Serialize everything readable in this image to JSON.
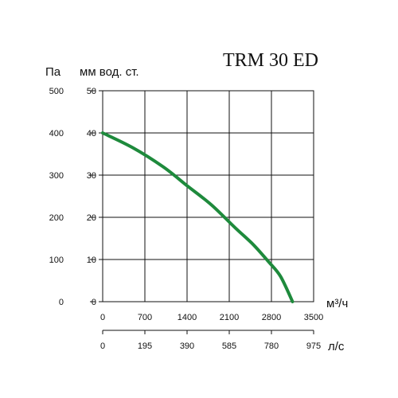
{
  "chart_data": {
    "type": "line",
    "title": "TRM 30 ED",
    "left_units": {
      "pa": "Па",
      "mm": "мм вод. ст."
    },
    "y_pa_ticks": [
      "500",
      "400",
      "300",
      "200",
      "100",
      "0"
    ],
    "y_mm_ticks": [
      "50",
      "40",
      "30",
      "20",
      "10",
      "0"
    ],
    "x_m3h_ticks": [
      "0",
      "700",
      "1400",
      "2100",
      "2800",
      "3500"
    ],
    "x_m3h_unit": "м³/ч",
    "x_ls_ticks": [
      "0",
      "195",
      "390",
      "585",
      "780",
      "975"
    ],
    "x_ls_unit": "л/с",
    "xlim": [
      0,
      3500
    ],
    "ylim": [
      0,
      50
    ],
    "grid": true,
    "series": [
      {
        "color": "#1e8a3c",
        "x": [
          0,
          500,
          1000,
          1400,
          1800,
          2200,
          2500,
          2750,
          2950,
          3150
        ],
        "y": [
          40,
          36.5,
          32,
          27.5,
          23,
          17.5,
          13.5,
          9.5,
          6,
          0
        ]
      }
    ]
  }
}
